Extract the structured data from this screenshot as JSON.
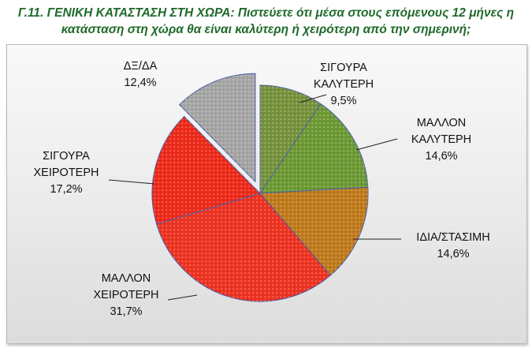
{
  "title_line1": "Γ.11. ΓΕΝΙΚΗ ΚΑΤΑΣΤΑΣΗ ΣΤΗ ΧΩΡΑ: Πιστεύετε ότι μέσα στους επόμενους 12 μήνες η",
  "title_line2": "κατάσταση στη χώρα θα είναι καλύτερη ή χειρότερη από την σημερινή;",
  "chart_data": {
    "type": "pie",
    "title": "Γ.11. ΓΕΝΙΚΗ ΚΑΤΑΣΤΑΣΗ ΣΤΗ ΧΩΡΑ: Πιστεύετε ότι μέσα στους επόμενους 12 μήνες η κατάσταση στη χώρα θα είναι καλύτερη ή χειρότερη από την σημερινή;",
    "slices": [
      {
        "name_lines": [
          "ΣΙΓΟΥΡΑ",
          "ΚΑΛΥΤΕΡΗ"
        ],
        "value": 9.5,
        "value_label": "9,5%",
        "color": "#77933c",
        "exploded": false
      },
      {
        "name_lines": [
          "ΜΑΛΛΟΝ",
          "ΚΑΛΥΤΕΡΗ"
        ],
        "value": 14.6,
        "value_label": "14,6%",
        "color": "#6e9a35",
        "exploded": false
      },
      {
        "name_lines": [
          "ΙΔΙΑ/ΣΤΑΣΙΜΗ"
        ],
        "value": 14.6,
        "value_label": "14,6%",
        "color": "#c07a1c",
        "exploded": false
      },
      {
        "name_lines": [
          "ΜΑΛΛΟΝ",
          "ΧΕΙΡΟΤΕΡΗ"
        ],
        "value": 31.7,
        "value_label": "31,7%",
        "color": "#ee3322",
        "exploded": false
      },
      {
        "name_lines": [
          "ΣΙΓΟΥΡΑ",
          "ΧΕΙΡΟΤΕΡΗ"
        ],
        "value": 17.2,
        "value_label": "17,2%",
        "color": "#ee2a1a",
        "exploded": false
      },
      {
        "name_lines": [
          "ΔΞ/ΔΑ"
        ],
        "value": 12.4,
        "value_label": "12,4%",
        "color": "#a6a6a6",
        "exploded": true
      }
    ],
    "start_angle_deg": 0,
    "direction": "clockwise",
    "legend": "none"
  }
}
